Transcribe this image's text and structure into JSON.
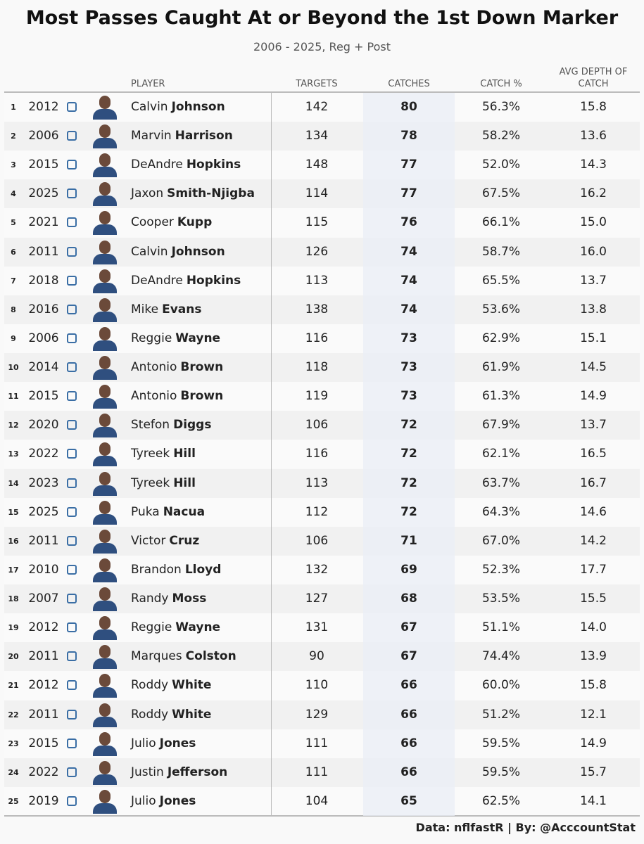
{
  "header": {
    "title": "Most Passes Caught At or Beyond the 1st Down Marker",
    "subtitle": "2006 - 2025, Reg + Post"
  },
  "table": {
    "columns": {
      "player": "PLAYER",
      "targets": "TARGETS",
      "catches": "CATCHES",
      "catch_pct": "CATCH %",
      "depth": "AVG DEPTH OF CATCH"
    },
    "rows": [
      {
        "rank": 1,
        "year": 2012,
        "first": "Calvin",
        "last": "Johnson",
        "targets": 142,
        "catches": 80,
        "catch_pct": "56.3%",
        "depth": "15.8"
      },
      {
        "rank": 2,
        "year": 2006,
        "first": "Marvin",
        "last": "Harrison",
        "targets": 134,
        "catches": 78,
        "catch_pct": "58.2%",
        "depth": "13.6"
      },
      {
        "rank": 3,
        "year": 2015,
        "first": "DeAndre",
        "last": "Hopkins",
        "targets": 148,
        "catches": 77,
        "catch_pct": "52.0%",
        "depth": "14.3"
      },
      {
        "rank": 4,
        "year": 2025,
        "first": "Jaxon",
        "last": "Smith-Njigba",
        "targets": 114,
        "catches": 77,
        "catch_pct": "67.5%",
        "depth": "16.2"
      },
      {
        "rank": 5,
        "year": 2021,
        "first": "Cooper",
        "last": "Kupp",
        "targets": 115,
        "catches": 76,
        "catch_pct": "66.1%",
        "depth": "15.0"
      },
      {
        "rank": 6,
        "year": 2011,
        "first": "Calvin",
        "last": "Johnson",
        "targets": 126,
        "catches": 74,
        "catch_pct": "58.7%",
        "depth": "16.0"
      },
      {
        "rank": 7,
        "year": 2018,
        "first": "DeAndre",
        "last": "Hopkins",
        "targets": 113,
        "catches": 74,
        "catch_pct": "65.5%",
        "depth": "13.7"
      },
      {
        "rank": 8,
        "year": 2016,
        "first": "Mike",
        "last": "Evans",
        "targets": 138,
        "catches": 74,
        "catch_pct": "53.6%",
        "depth": "13.8"
      },
      {
        "rank": 9,
        "year": 2006,
        "first": "Reggie",
        "last": "Wayne",
        "targets": 116,
        "catches": 73,
        "catch_pct": "62.9%",
        "depth": "15.1"
      },
      {
        "rank": 10,
        "year": 2014,
        "first": "Antonio",
        "last": "Brown",
        "targets": 118,
        "catches": 73,
        "catch_pct": "61.9%",
        "depth": "14.5"
      },
      {
        "rank": 11,
        "year": 2015,
        "first": "Antonio",
        "last": "Brown",
        "targets": 119,
        "catches": 73,
        "catch_pct": "61.3%",
        "depth": "14.9"
      },
      {
        "rank": 12,
        "year": 2020,
        "first": "Stefon",
        "last": "Diggs",
        "targets": 106,
        "catches": 72,
        "catch_pct": "67.9%",
        "depth": "13.7"
      },
      {
        "rank": 13,
        "year": 2022,
        "first": "Tyreek",
        "last": "Hill",
        "targets": 116,
        "catches": 72,
        "catch_pct": "62.1%",
        "depth": "16.5"
      },
      {
        "rank": 14,
        "year": 2023,
        "first": "Tyreek",
        "last": "Hill",
        "targets": 113,
        "catches": 72,
        "catch_pct": "63.7%",
        "depth": "16.7"
      },
      {
        "rank": 15,
        "year": 2025,
        "first": "Puka",
        "last": "Nacua",
        "targets": 112,
        "catches": 72,
        "catch_pct": "64.3%",
        "depth": "14.6"
      },
      {
        "rank": 16,
        "year": 2011,
        "first": "Victor",
        "last": "Cruz",
        "targets": 106,
        "catches": 71,
        "catch_pct": "67.0%",
        "depth": "14.2"
      },
      {
        "rank": 17,
        "year": 2010,
        "first": "Brandon",
        "last": "Lloyd",
        "targets": 132,
        "catches": 69,
        "catch_pct": "52.3%",
        "depth": "17.7"
      },
      {
        "rank": 18,
        "year": 2007,
        "first": "Randy",
        "last": "Moss",
        "targets": 127,
        "catches": 68,
        "catch_pct": "53.5%",
        "depth": "15.5"
      },
      {
        "rank": 19,
        "year": 2012,
        "first": "Reggie",
        "last": "Wayne",
        "targets": 131,
        "catches": 67,
        "catch_pct": "51.1%",
        "depth": "14.0"
      },
      {
        "rank": 20,
        "year": 2011,
        "first": "Marques",
        "last": "Colston",
        "targets": 90,
        "catches": 67,
        "catch_pct": "74.4%",
        "depth": "13.9"
      },
      {
        "rank": 21,
        "year": 2012,
        "first": "Roddy",
        "last": "White",
        "targets": 110,
        "catches": 66,
        "catch_pct": "60.0%",
        "depth": "15.8"
      },
      {
        "rank": 22,
        "year": 2011,
        "first": "Roddy",
        "last": "White",
        "targets": 129,
        "catches": 66,
        "catch_pct": "51.2%",
        "depth": "12.1"
      },
      {
        "rank": 23,
        "year": 2015,
        "first": "Julio",
        "last": "Jones",
        "targets": 111,
        "catches": 66,
        "catch_pct": "59.5%",
        "depth": "14.9"
      },
      {
        "rank": 24,
        "year": 2022,
        "first": "Justin",
        "last": "Jefferson",
        "targets": 111,
        "catches": 66,
        "catch_pct": "59.5%",
        "depth": "15.7"
      },
      {
        "rank": 25,
        "year": 2019,
        "first": "Julio",
        "last": "Jones",
        "targets": 104,
        "catches": 65,
        "catch_pct": "62.5%",
        "depth": "14.1"
      }
    ]
  },
  "footer": {
    "credit": "Data: nflfastR | By: @AcccountStat"
  }
}
